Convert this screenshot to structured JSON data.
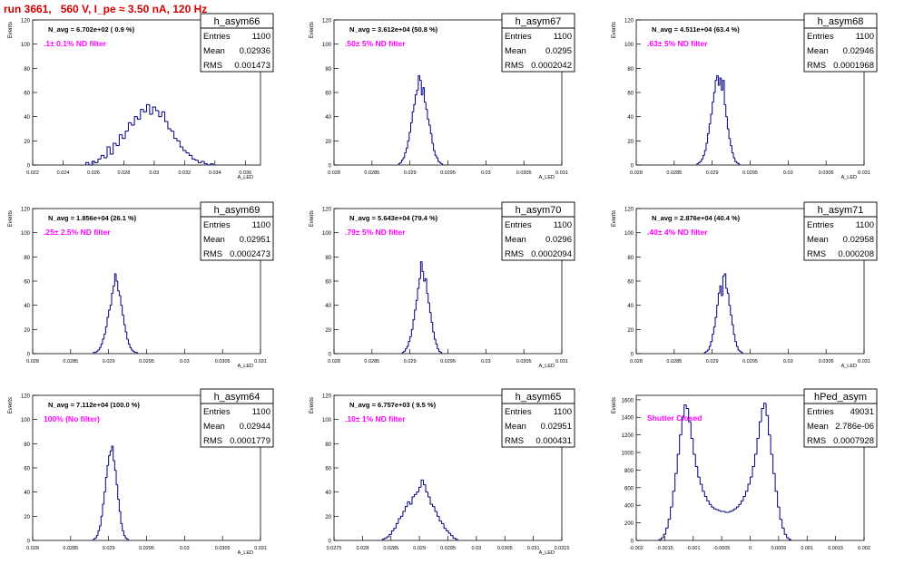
{
  "page": {
    "title": "run 3661,   560 V, I_pe ≈ 3.50 nA, 120 Hz"
  },
  "colors": {
    "histogram": "#000080",
    "note": "#ff00ff",
    "title": "#d40000",
    "frame": "#000000"
  },
  "stat_labels": {
    "entries": "Entries",
    "mean": "Mean",
    "rms": "RMS"
  },
  "chart_data": [
    {
      "type": "histogram",
      "name": "h_asym66",
      "navg": "N_avg = 6.702e+02 ( 0.9 %)",
      "note": ".1± 0.1% ND filter",
      "entries": "1100",
      "mean": "0.02936",
      "rms": "0.001473",
      "ylabel": "Events",
      "xlabel": "A_LED",
      "xlim": [
        0.022,
        0.037
      ],
      "ylim": [
        0,
        120
      ],
      "xticks": [
        0.022,
        0.024,
        0.026,
        0.028,
        0.03,
        0.032,
        0.034,
        0.036
      ],
      "xtick_labels": [
        "0.022",
        "0.024",
        "0.026",
        "0.028",
        "0.03",
        "0.032",
        "0.034",
        "0.036"
      ],
      "yticks": [
        0,
        20,
        40,
        60,
        80,
        100,
        120
      ],
      "ytick_labels": [
        "0",
        "20",
        "40",
        "60",
        "80",
        "100",
        "120"
      ],
      "bins": {
        "start": 0.0255,
        "width": 0.0002,
        "counts": [
          2,
          0,
          3,
          2,
          5,
          8,
          6,
          15,
          9,
          18,
          16,
          25,
          22,
          28,
          35,
          33,
          40,
          38,
          46,
          44,
          50,
          42,
          48,
          45,
          40,
          44,
          36,
          30,
          28,
          22,
          20,
          15,
          12,
          10,
          8,
          5,
          4,
          2,
          3,
          1,
          0,
          1
        ]
      }
    },
    {
      "type": "histogram",
      "name": "h_asym67",
      "navg": "N_avg = 3.612e+04 (50.8 %)",
      "note": ".50± 5% ND filter",
      "entries": "1100",
      "mean": "0.0295",
      "rms": "0.0002042",
      "ylabel": "Events",
      "xlabel": "A_LED",
      "xlim": [
        0.028,
        0.031
      ],
      "ylim": [
        0,
        120
      ],
      "xticks": [
        0.028,
        0.0285,
        0.029,
        0.0295,
        0.03,
        0.0305,
        0.031
      ],
      "xtick_labels": [
        "0.028",
        "0.0285",
        "0.029",
        "0.0295",
        "0.03",
        "0.0305",
        "0.031"
      ],
      "yticks": [
        0,
        20,
        40,
        60,
        80,
        100,
        120
      ],
      "ytick_labels": [
        "0",
        "20",
        "40",
        "60",
        "80",
        "100",
        "120"
      ],
      "bins": {
        "start": 0.02885,
        "width": 2e-05,
        "counts": [
          1,
          2,
          4,
          6,
          10,
          14,
          20,
          27,
          35,
          44,
          50,
          58,
          62,
          74,
          70,
          58,
          64,
          52,
          46,
          38,
          33,
          26,
          18,
          12,
          8,
          6,
          3,
          2,
          1
        ]
      }
    },
    {
      "type": "histogram",
      "name": "h_asym68",
      "navg": "N_avg = 4.511e+04 (63.4 %)",
      "note": ".63± 5% ND filter",
      "entries": "1100",
      "mean": "0.02946",
      "rms": "0.0001968",
      "ylabel": "Events",
      "xlabel": "A_LED",
      "xlim": [
        0.028,
        0.031
      ],
      "ylim": [
        0,
        120
      ],
      "xticks": [
        0.028,
        0.0285,
        0.029,
        0.0295,
        0.03,
        0.0305,
        0.031
      ],
      "xtick_labels": [
        "0.028",
        "0.0285",
        "0.029",
        "0.0295",
        "0.03",
        "0.0305",
        "0.031"
      ],
      "yticks": [
        0,
        20,
        40,
        60,
        80,
        100,
        120
      ],
      "ytick_labels": [
        "0",
        "20",
        "40",
        "60",
        "80",
        "100",
        "120"
      ],
      "bins": {
        "start": 0.0288,
        "width": 2e-05,
        "counts": [
          1,
          2,
          3,
          5,
          8,
          12,
          18,
          26,
          34,
          42,
          52,
          60,
          70,
          74,
          66,
          72,
          62,
          70,
          50,
          40,
          30,
          22,
          16,
          10,
          6,
          3,
          2,
          1
        ]
      }
    },
    {
      "type": "histogram",
      "name": "h_asym69",
      "navg": "N_avg = 1.856e+04 (26.1 %)",
      "note": ".25± 2.5% ND filter",
      "entries": "1100",
      "mean": "0.02951",
      "rms": "0.0002473",
      "ylabel": "Events",
      "xlabel": "A_LED",
      "xlim": [
        0.028,
        0.031
      ],
      "ylim": [
        0,
        120
      ],
      "xticks": [
        0.028,
        0.0285,
        0.029,
        0.0295,
        0.03,
        0.0305,
        0.031
      ],
      "xtick_labels": [
        "0.028",
        "0.0285",
        "0.029",
        "0.0295",
        "0.03",
        "0.0305",
        "0.031"
      ],
      "yticks": [
        0,
        20,
        40,
        60,
        80,
        100,
        120
      ],
      "ytick_labels": [
        "0",
        "20",
        "40",
        "60",
        "80",
        "100",
        "120"
      ],
      "bins": {
        "start": 0.0288,
        "width": 2e-05,
        "counts": [
          1,
          1,
          2,
          3,
          5,
          8,
          12,
          16,
          22,
          30,
          36,
          40,
          50,
          56,
          66,
          60,
          52,
          48,
          40,
          32,
          24,
          18,
          12,
          8,
          5,
          3,
          2,
          1,
          1
        ]
      }
    },
    {
      "type": "histogram",
      "name": "h_asym70",
      "navg": "N_avg = 5.643e+04 (79.4 %)",
      "note": ".79± 5% ND filter",
      "entries": "1100",
      "mean": "0.0296",
      "rms": "0.0002094",
      "ylabel": "Events",
      "xlabel": "A_LED",
      "xlim": [
        0.028,
        0.031
      ],
      "ylim": [
        0,
        120
      ],
      "xticks": [
        0.028,
        0.0285,
        0.029,
        0.0295,
        0.03,
        0.0305,
        0.031
      ],
      "xtick_labels": [
        "0.028",
        "0.0285",
        "0.029",
        "0.0295",
        "0.03",
        "0.0305",
        "0.031"
      ],
      "yticks": [
        0,
        20,
        40,
        60,
        80,
        100,
        120
      ],
      "ytick_labels": [
        "0",
        "20",
        "40",
        "60",
        "80",
        "100",
        "120"
      ],
      "bins": {
        "start": 0.0289,
        "width": 2e-05,
        "counts": [
          1,
          2,
          4,
          6,
          10,
          14,
          20,
          28,
          36,
          44,
          54,
          62,
          76,
          68,
          60,
          62,
          50,
          42,
          34,
          26,
          18,
          12,
          8,
          4,
          2,
          1
        ]
      }
    },
    {
      "type": "histogram",
      "name": "h_asym71",
      "navg": "N_avg = 2.876e+04 (40.4 %)",
      "note": ".40± 4% ND filter",
      "entries": "1100",
      "mean": "0.02958",
      "rms": "0.000208",
      "ylabel": "Events",
      "xlabel": "A_LED",
      "xlim": [
        0.028,
        0.031
      ],
      "ylim": [
        0,
        120
      ],
      "xticks": [
        0.028,
        0.0285,
        0.029,
        0.0295,
        0.03,
        0.0305,
        0.031
      ],
      "xtick_labels": [
        "0.028",
        "0.0285",
        "0.029",
        "0.0295",
        "0.03",
        "0.0305",
        "0.031"
      ],
      "yticks": [
        0,
        20,
        40,
        60,
        80,
        100,
        120
      ],
      "ytick_labels": [
        "0",
        "20",
        "40",
        "60",
        "80",
        "100",
        "120"
      ],
      "bins": {
        "start": 0.0289,
        "width": 2e-05,
        "counts": [
          1,
          2,
          3,
          6,
          10,
          16,
          22,
          30,
          40,
          50,
          56,
          48,
          64,
          66,
          54,
          50,
          40,
          32,
          24,
          16,
          10,
          6,
          3,
          2,
          1
        ]
      }
    },
    {
      "type": "histogram",
      "name": "h_asym64",
      "navg": "N_avg = 7.112e+04 (100.0 %)",
      "note": "100% (No filter)",
      "entries": "1100",
      "mean": "0.02944",
      "rms": "0.0001779",
      "ylabel": "Events",
      "xlabel": "A_LED",
      "xlim": [
        0.028,
        0.031
      ],
      "ylim": [
        0,
        120
      ],
      "xticks": [
        0.028,
        0.0285,
        0.029,
        0.0295,
        0.03,
        0.0305,
        0.031
      ],
      "xtick_labels": [
        "0.028",
        "0.0285",
        "0.029",
        "0.0295",
        "0.03",
        "0.0305",
        "0.031"
      ],
      "yticks": [
        0,
        20,
        40,
        60,
        80,
        100,
        120
      ],
      "ytick_labels": [
        "0",
        "20",
        "40",
        "60",
        "80",
        "100",
        "120"
      ],
      "bins": {
        "start": 0.0288,
        "width": 2e-05,
        "counts": [
          1,
          2,
          4,
          8,
          12,
          20,
          30,
          40,
          52,
          62,
          70,
          74,
          78,
          66,
          58,
          46,
          34,
          24,
          14,
          8,
          4,
          2,
          1
        ]
      }
    },
    {
      "type": "histogram",
      "name": "h_asym65",
      "navg": "N_avg = 6.757e+03 ( 9.5 %)",
      "note": ".10± 1% ND filter",
      "entries": "1100",
      "mean": "0.02951",
      "rms": "0.000431",
      "ylabel": "Events",
      "xlabel": "A_LED",
      "xlim": [
        0.0275,
        0.0315
      ],
      "ylim": [
        0,
        120
      ],
      "xticks": [
        0.0275,
        0.028,
        0.0285,
        0.029,
        0.0295,
        0.03,
        0.0305,
        0.031,
        0.0315
      ],
      "xtick_labels": [
        "0.0275",
        "0.028",
        "0.0285",
        "0.029",
        "0.0295",
        "0.03",
        "0.0305",
        "0.031",
        "0.0315"
      ],
      "yticks": [
        0,
        20,
        40,
        60,
        80,
        100,
        120
      ],
      "ytick_labels": [
        "0",
        "20",
        "40",
        "60",
        "80",
        "100",
        "120"
      ],
      "bins": {
        "start": 0.02835,
        "width": 4e-05,
        "counts": [
          1,
          2,
          3,
          5,
          8,
          10,
          14,
          18,
          20,
          24,
          28,
          32,
          30,
          36,
          38,
          40,
          44,
          50,
          46,
          40,
          36,
          30,
          28,
          24,
          20,
          16,
          14,
          10,
          8,
          6,
          4,
          2,
          1
        ]
      }
    },
    {
      "type": "histogram",
      "name": "hPed_asym",
      "navg": "",
      "note": "Shutter Closed",
      "entries": "49031",
      "mean": "2.786e-06",
      "rms": "0.0007928",
      "ylabel": "Events",
      "xlabel": "",
      "xlim": [
        -0.002,
        0.002
      ],
      "ylim": [
        0,
        1650
      ],
      "xticks": [
        -0.002,
        -0.0015,
        -0.001,
        -0.0005,
        0,
        0.0005,
        0.001,
        0.0015,
        0.002
      ],
      "xtick_labels": [
        "-0.002",
        "-0.0015",
        "-0.001",
        "-0.0005",
        "0",
        "0.0005",
        "0.001",
        "0.0015",
        "0.002"
      ],
      "yticks": [
        0,
        200,
        400,
        600,
        800,
        1000,
        1200,
        1400,
        1600
      ],
      "ytick_labels": [
        "0",
        "200",
        "400",
        "600",
        "800",
        "1000",
        "1200",
        "1400",
        "1600"
      ],
      "bins": {
        "start": -0.0016,
        "width": 4e-05,
        "counts": [
          10,
          30,
          70,
          140,
          240,
          380,
          560,
          760,
          980,
          1200,
          1400,
          1540,
          1500,
          1350,
          1160,
          980,
          840,
          720,
          640,
          560,
          500,
          450,
          410,
          380,
          360,
          350,
          340,
          330,
          330,
          320,
          320,
          330,
          340,
          360,
          380,
          410,
          450,
          500,
          560,
          640,
          720,
          840,
          980,
          1160,
          1350,
          1500,
          1560,
          1420,
          1200,
          980,
          760,
          560,
          380,
          240,
          140,
          70,
          30,
          10
        ]
      }
    }
  ]
}
